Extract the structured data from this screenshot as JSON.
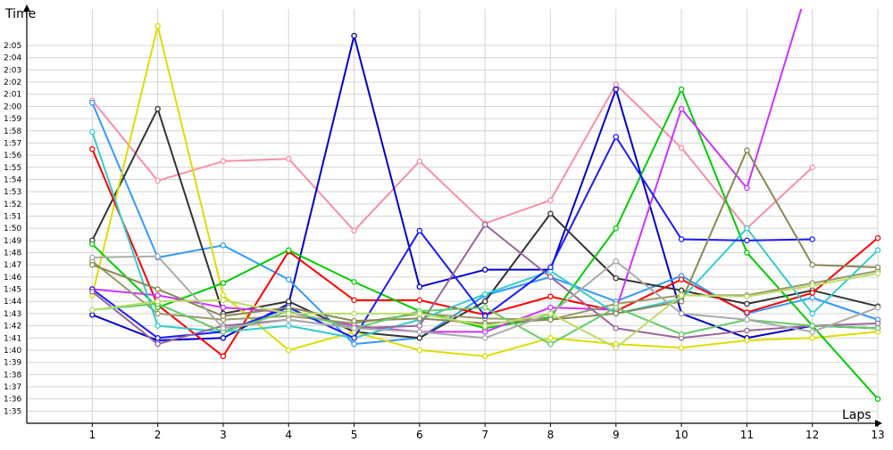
{
  "chart_data": {
    "type": "line",
    "xlabel": "Laps",
    "ylabel": "Time",
    "x": [
      1,
      2,
      3,
      4,
      5,
      6,
      7,
      8,
      9,
      10,
      11,
      12,
      13
    ],
    "x_tick_labels": [
      "1",
      "2",
      "3",
      "4",
      "5",
      "6",
      "7",
      "8",
      "9",
      "10",
      "11",
      "12",
      "13"
    ],
    "y_tick_labels": [
      "1:35",
      "1:36",
      "1:37",
      "1:38",
      "1:39",
      "1:40",
      "1:41",
      "1:42",
      "1:43",
      "1:44",
      "1:45",
      "1:46",
      "1:47",
      "1:48",
      "1:49",
      "1:50",
      "1:51",
      "1:52",
      "1:53",
      "1:54",
      "1:55",
      "1:56",
      "1:57",
      "1:58",
      "1:59",
      "2:00",
      "2:01",
      "2:02",
      "2:03",
      "2:04",
      "2:05"
    ],
    "y_ticks_seconds": [
      95,
      96,
      97,
      98,
      99,
      100,
      101,
      102,
      103,
      104,
      105,
      106,
      107,
      108,
      109,
      110,
      111,
      112,
      113,
      114,
      115,
      116,
      117,
      118,
      119,
      120,
      121,
      122,
      123,
      124,
      125
    ],
    "ylim_seconds": [
      94,
      128
    ],
    "xlim": [
      0,
      13
    ],
    "grid": true,
    "series": [
      {
        "color": "#f78fa7",
        "values": [
          120.5,
          113.9,
          115.5,
          115.7,
          109.8,
          115.5,
          110.4,
          112.3,
          121.8,
          116.6,
          110.0,
          115.0,
          null
        ]
      },
      {
        "color": "#0000cc",
        "values": [
          102.9,
          100.8,
          101.0,
          103.8,
          125.8,
          105.2,
          106.6,
          106.6,
          121.4,
          103.0,
          101.0,
          102.0,
          101.8
        ]
      },
      {
        "color": "#3399ff",
        "values": [
          120.3,
          107.6,
          108.6,
          105.8,
          100.5,
          101.0,
          104.5,
          106.0,
          104.0,
          106.1,
          103.0,
          104.3,
          102.5
        ]
      },
      {
        "color": "#333333",
        "values": [
          109.0,
          119.8,
          103.0,
          104.0,
          101.5,
          101.0,
          104.0,
          111.2,
          105.9,
          104.9,
          103.8,
          104.9,
          103.6
        ]
      },
      {
        "color": "#dddd00",
        "values": [
          104.5,
          126.6,
          104.5,
          100.0,
          101.5,
          100.0,
          99.5,
          101.0,
          100.5,
          100.2,
          100.8,
          101.0,
          101.5
        ]
      },
      {
        "color": "#ff0000",
        "values": [
          116.5,
          103.7,
          99.5,
          108.1,
          104.1,
          104.1,
          102.9,
          104.4,
          103.2,
          105.8,
          103.1,
          104.7,
          109.2
        ]
      },
      {
        "color": "#00cc00",
        "values": [
          108.7,
          103.5,
          105.5,
          108.2,
          105.6,
          103.2,
          101.8,
          102.7,
          110.0,
          121.4,
          108.0,
          102.0,
          96.0
        ]
      },
      {
        "color": "#cc33ff",
        "values": [
          105.0,
          104.5,
          103.5,
          103.1,
          102.0,
          101.5,
          101.5,
          103.5,
          103.3,
          119.8,
          113.3,
          131.0,
          null
        ]
      },
      {
        "color": "#999966",
        "values": [
          107.3,
          103.0,
          102.5,
          102.8,
          102.2,
          103.0,
          102.6,
          102.5,
          103.8,
          104.5,
          104.5,
          105.5,
          106.5
        ]
      },
      {
        "color": "#33cccc",
        "values": [
          117.9,
          102.0,
          101.5,
          102.0,
          101.0,
          102.5,
          104.6,
          106.5,
          103.0,
          104.2,
          110.0,
          103.0,
          108.2
        ]
      },
      {
        "color": "#1a1aff",
        "values": [
          105.0,
          101.0,
          101.5,
          103.5,
          101.0,
          109.8,
          102.8,
          106.8,
          117.5,
          109.1,
          109.0,
          109.1,
          null
        ]
      },
      {
        "color": "#996699",
        "values": [
          104.8,
          100.5,
          102.0,
          102.5,
          101.8,
          102.0,
          110.3,
          106.0,
          101.8,
          101.0,
          101.6,
          102.0,
          102.2
        ]
      },
      {
        "color": "#888855",
        "values": [
          107.0,
          105.0,
          102.8,
          103.5,
          102.4,
          102.6,
          102.2,
          102.5,
          103.0,
          104.0,
          116.4,
          107.0,
          106.8
        ]
      },
      {
        "color": "#66cc66",
        "values": [
          103.3,
          103.8,
          101.5,
          103.2,
          101.8,
          103.2,
          103.5,
          100.5,
          103.5,
          101.3,
          102.5,
          102.0,
          101.8
        ]
      },
      {
        "color": "#aaaaaa",
        "values": [
          107.6,
          107.7,
          101.8,
          102.5,
          101.8,
          101.5,
          101.0,
          103.0,
          107.3,
          103.0,
          102.5,
          101.5,
          103.5
        ]
      },
      {
        "color": "#bbdd66",
        "values": [
          103.3,
          104.0,
          104.1,
          103.0,
          103.0,
          103.0,
          102.0,
          103.0,
          100.2,
          104.5,
          104.4,
          105.3,
          106.3
        ]
      }
    ]
  }
}
